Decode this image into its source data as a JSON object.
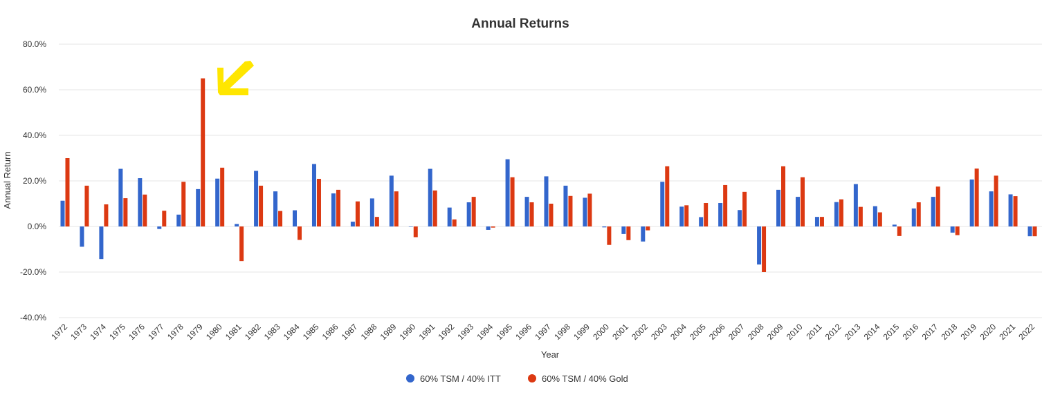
{
  "chart_data": {
    "type": "bar",
    "title": "Annual Returns",
    "xlabel": "Year",
    "ylabel": "Annual Return",
    "ylim": [
      -40,
      80
    ],
    "y_ticks": [
      80,
      60,
      40,
      20,
      0,
      -20,
      -40
    ],
    "y_tick_labels": [
      "80.0%",
      "60.0%",
      "40.0%",
      "20.0%",
      "0.0%",
      "-20.0%",
      "-40.0%"
    ],
    "grid": true,
    "legend_position": "bottom-center",
    "categories": [
      "1972",
      "1973",
      "1974",
      "1975",
      "1976",
      "1977",
      "1978",
      "1979",
      "1980",
      "1981",
      "1982",
      "1983",
      "1984",
      "1985",
      "1986",
      "1987",
      "1988",
      "1989",
      "1990",
      "1991",
      "1992",
      "1993",
      "1994",
      "1995",
      "1996",
      "1997",
      "1998",
      "1999",
      "2000",
      "2001",
      "2002",
      "2003",
      "2004",
      "2005",
      "2006",
      "2007",
      "2008",
      "2009",
      "2010",
      "2011",
      "2012",
      "2013",
      "2014",
      "2015",
      "2016",
      "2017",
      "2018",
      "2019",
      "2020",
      "2021",
      "2022"
    ],
    "series": [
      {
        "name": "60% TSM / 40% ITT",
        "color": "#3366cc",
        "values": [
          11.3,
          -8.9,
          -14.3,
          25.3,
          21.2,
          -1.1,
          5.2,
          16.4,
          21.0,
          1.1,
          24.4,
          15.4,
          7.1,
          27.4,
          14.5,
          2.1,
          12.3,
          22.3,
          0.0,
          25.3,
          8.3,
          10.6,
          -1.5,
          29.5,
          13.0,
          22.0,
          17.9,
          12.6,
          -0.4,
          -3.3,
          -6.6,
          19.6,
          8.7,
          4.1,
          10.3,
          7.2,
          -16.7,
          16.1,
          13.0,
          4.2,
          10.7,
          18.6,
          8.9,
          0.8,
          7.9,
          13.0,
          -2.7,
          20.6,
          15.4,
          14.1,
          -4.3
        ]
      },
      {
        "name": "60% TSM / 40% Gold",
        "color": "#dc3912",
        "values": [
          30.0,
          17.9,
          9.7,
          12.4,
          14.0,
          6.9,
          19.6,
          65.0,
          25.8,
          -15.2,
          17.9,
          6.8,
          -5.9,
          20.9,
          16.1,
          11.0,
          4.2,
          15.4,
          -4.7,
          15.8,
          3.1,
          13.0,
          -0.5,
          21.6,
          10.6,
          10.0,
          13.4,
          14.4,
          -8.1,
          -6.0,
          -1.7,
          26.4,
          9.3,
          10.3,
          18.2,
          15.2,
          -20.0,
          26.4,
          21.6,
          4.2,
          11.9,
          8.6,
          6.2,
          -4.2,
          10.6,
          17.5,
          -3.8,
          25.4,
          22.3,
          13.3,
          -4.3
        ]
      }
    ]
  }
}
